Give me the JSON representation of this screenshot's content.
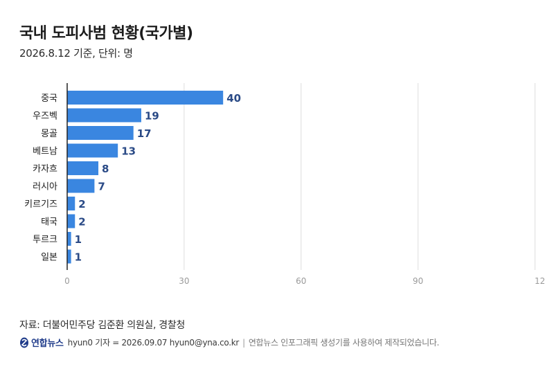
{
  "title": "국내 도피사범 현황(국가별)",
  "subtitle": "2026.8.12 기준, 단위: 명",
  "source": "자료: 더불어민주당 김준환 의원실, 경찰청",
  "credit": {
    "logo_text": "연합뉴스",
    "byline": "hyun0 기자 = 2026.09.07 hyun0@yna.co.kr",
    "note": "연합뉴스 인포그래픽 생성기를 사용하여 제작되었습니다."
  },
  "colors": {
    "bar": "#3a86e0",
    "value_label": "#2a4a86",
    "grid": "#dddddd",
    "axis": "#222222",
    "tick": "#9a9a9a"
  },
  "chart_data": {
    "type": "bar",
    "orientation": "horizontal",
    "categories": [
      "중국",
      "우즈벡",
      "몽골",
      "베트남",
      "카자흐",
      "러시아",
      "키르기즈",
      "태국",
      "투르크",
      "일본"
    ],
    "values": [
      40,
      19,
      17,
      13,
      8,
      7,
      2,
      2,
      1,
      1
    ],
    "x_ticks": [
      "0",
      "30",
      "60",
      "90",
      "12"
    ],
    "xlim": [
      0,
      120
    ],
    "grid": true,
    "data_labels": true
  }
}
